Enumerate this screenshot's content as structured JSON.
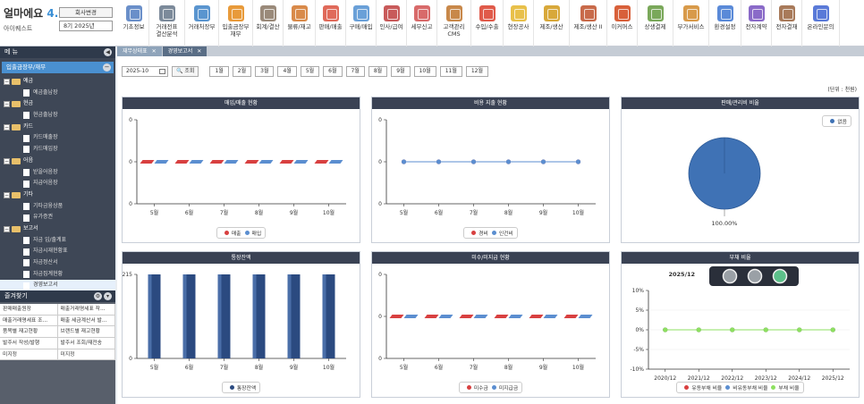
{
  "app": {
    "logo": "얼마에요",
    "version": "4.0",
    "company": "아이퀘스트",
    "biz_button": "회사변경",
    "period": "8기 2025년"
  },
  "top_menu": [
    {
      "label": "기초정보",
      "color": "#6a8fc9"
    },
    {
      "label": "거래전표\n결산분석",
      "color": "#7c8a9a"
    },
    {
      "label": "거래처장부",
      "color": "#5a95cf"
    },
    {
      "label": "입출금장부\n재무",
      "color": "#e89a3a"
    },
    {
      "label": "회계/결산",
      "color": "#9a8a7a"
    },
    {
      "label": "물류/재고",
      "color": "#d98a4a"
    },
    {
      "label": "판매/매출",
      "color": "#e06a5a"
    },
    {
      "label": "구매/매입",
      "color": "#6aa0d8"
    },
    {
      "label": "인사/급여",
      "color": "#c85a5a"
    },
    {
      "label": "세무신고",
      "color": "#d86a6a"
    },
    {
      "label": "고객관리\nCMS",
      "color": "#c8884a"
    },
    {
      "label": "수입/수출",
      "color": "#e05a4a"
    },
    {
      "label": "현장공사",
      "color": "#e8c04a"
    },
    {
      "label": "제조/생산",
      "color": "#d8a83a"
    },
    {
      "label": "제조/생산 II",
      "color": "#c86a4a"
    },
    {
      "label": "이커머스",
      "color": "#d8603a"
    },
    {
      "label": "상생결제",
      "color": "#7aa85a"
    },
    {
      "label": "부가서비스",
      "color": "#d89a4a"
    },
    {
      "label": "환경설정",
      "color": "#5a8ad8"
    },
    {
      "label": "전자계약",
      "color": "#8a6ac8"
    },
    {
      "label": "전자결재",
      "color": "#a87a5a"
    },
    {
      "label": "온라인문의",
      "color": "#5a7ad8"
    }
  ],
  "sidebar": {
    "header": "메 뉴",
    "selected": "입출금장부/재무",
    "tree": [
      {
        "type": "folder",
        "label": "예금"
      },
      {
        "type": "leaf",
        "label": "예금출납장"
      },
      {
        "type": "folder",
        "label": "현금"
      },
      {
        "type": "leaf",
        "label": "현금출납장"
      },
      {
        "type": "folder",
        "label": "카드"
      },
      {
        "type": "leaf",
        "label": "카드매출장"
      },
      {
        "type": "leaf",
        "label": "카드매입장"
      },
      {
        "type": "folder",
        "label": "어음"
      },
      {
        "type": "leaf",
        "label": "받을어음장"
      },
      {
        "type": "leaf",
        "label": "지급어음장"
      },
      {
        "type": "folder",
        "label": "기타"
      },
      {
        "type": "leaf",
        "label": "기타금융상품"
      },
      {
        "type": "leaf",
        "label": "유가증권"
      },
      {
        "type": "folder",
        "label": "보고서"
      },
      {
        "type": "leaf",
        "label": "자금 입/출계표"
      },
      {
        "type": "leaf",
        "label": "자금시재현황표"
      },
      {
        "type": "leaf",
        "label": "자금정산서"
      },
      {
        "type": "leaf",
        "label": "자금집계현황"
      },
      {
        "type": "leaf",
        "label": "경영보고서",
        "active": true
      }
    ]
  },
  "favorites": {
    "header": "즐겨찾기",
    "rows": [
      [
        "판매매출원장",
        "매출거래명세표 작..."
      ],
      [
        "매출거래명세표 조...",
        "매출 세금계산서 발..."
      ],
      [
        "품목별 재고현황",
        "브랜드별 재고현황"
      ],
      [
        "발주서 작성/발행",
        "발주서 조회/재전송"
      ],
      [
        "미지정",
        "미지정"
      ]
    ]
  },
  "tabs": [
    {
      "label": "재무상태표",
      "active": false
    },
    {
      "label": "경영보고서",
      "active": true
    }
  ],
  "filter": {
    "date": "2025-10",
    "search_label": "조회",
    "months": [
      "1월",
      "2월",
      "3월",
      "4월",
      "5월",
      "6월",
      "7월",
      "8월",
      "9월",
      "10월",
      "11월",
      "12월"
    ]
  },
  "unit": "(단위 : 천원)",
  "chart_data": [
    {
      "title": "매입/매출 현황",
      "type": "bar",
      "categories": [
        "5월",
        "6월",
        "7월",
        "8월",
        "9월",
        "10월"
      ],
      "series": [
        {
          "name": "매출",
          "color": "#d84040",
          "values": [
            0,
            0,
            0,
            0,
            0,
            0
          ]
        },
        {
          "name": "매입",
          "color": "#5b8ed0",
          "values": [
            0,
            0,
            0,
            0,
            0,
            0
          ]
        }
      ],
      "ylim": [
        -1,
        1
      ],
      "yticks": [
        "0",
        "0",
        "0"
      ]
    },
    {
      "title": "비용 지출 현황",
      "type": "line",
      "categories": [
        "5월",
        "6월",
        "7월",
        "8월",
        "9월",
        "10월"
      ],
      "series": [
        {
          "name": "경비",
          "color": "#d84040",
          "values": [
            0,
            0,
            0,
            0,
            0,
            0
          ]
        },
        {
          "name": "인건비",
          "color": "#5b8ed0",
          "values": [
            0,
            0,
            0,
            0,
            0,
            0
          ]
        }
      ],
      "ylim": [
        -1,
        1
      ],
      "yticks": [
        "0",
        "0",
        "0"
      ]
    },
    {
      "title": "판매/관리비 비율",
      "type": "pie",
      "slices": [
        {
          "name": "없음",
          "value": 100,
          "color": "#3f72b5"
        }
      ],
      "label": "100.00%"
    },
    {
      "title": "통장잔액",
      "type": "bar",
      "categories": [
        "5월",
        "6월",
        "7월",
        "8월",
        "9월",
        "10월"
      ],
      "series": [
        {
          "name": "통장잔액",
          "color": "#2b4a80",
          "values": [
            215,
            215,
            215,
            215,
            215,
            215
          ]
        }
      ],
      "ylim": [
        0,
        215
      ],
      "yticks": [
        "215",
        "0"
      ]
    },
    {
      "title": "미수/미지급 현황",
      "type": "bar",
      "categories": [
        "5월",
        "6월",
        "7월",
        "8월",
        "9월",
        "10월"
      ],
      "series": [
        {
          "name": "미수금",
          "color": "#d84040",
          "values": [
            0,
            0,
            0,
            0,
            0,
            0
          ]
        },
        {
          "name": "미지급금",
          "color": "#5b8ed0",
          "values": [
            0,
            0,
            0,
            0,
            0,
            0
          ]
        }
      ],
      "ylim": [
        -1,
        1
      ],
      "yticks": [
        "0",
        "0",
        "0"
      ]
    },
    {
      "title": "부채 비율",
      "type": "line",
      "indicator": "2025/12",
      "categories": [
        "2020/12",
        "2021/12",
        "2022/12",
        "2023/12",
        "2024/12",
        "2025/12"
      ],
      "series": [
        {
          "name": "유동부채 비율",
          "color": "#d84040",
          "values": [
            0,
            0,
            0,
            0,
            0,
            0
          ]
        },
        {
          "name": "비유동부채 비율",
          "color": "#5b8ed0",
          "values": [
            0,
            0,
            0,
            0,
            0,
            0
          ]
        },
        {
          "name": "부채 비율",
          "color": "#8de060",
          "values": [
            0,
            0,
            0,
            0,
            0,
            0
          ]
        }
      ],
      "ylim": [
        -10,
        10
      ],
      "yticks": [
        "10%",
        "5%",
        "0%",
        "-5%",
        "-10%"
      ]
    }
  ]
}
